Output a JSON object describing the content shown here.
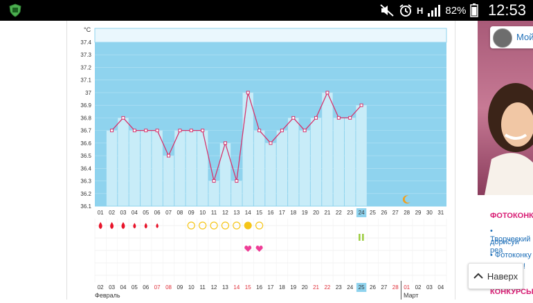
{
  "status_bar": {
    "battery": "82%",
    "time": "12:53",
    "network": "H",
    "icons": [
      "app-shield-icon",
      "mute-icon",
      "alarm-icon",
      "network-h-icon",
      "signal-icon",
      "battery-icon"
    ]
  },
  "chart": {
    "unit": "°C",
    "y_ticks": [
      "37.4",
      "37.3",
      "37.2",
      "37.1",
      "37",
      "36.9",
      "36.8",
      "36.7",
      "36.6",
      "36.5",
      "36.4",
      "36.3",
      "36.2",
      "36.1"
    ],
    "day_labels": [
      "01",
      "02",
      "03",
      "04",
      "05",
      "06",
      "07",
      "08",
      "09",
      "10",
      "11",
      "12",
      "13",
      "14",
      "15",
      "16",
      "17",
      "18",
      "19",
      "20",
      "21",
      "22",
      "23",
      "24",
      "25",
      "26",
      "27",
      "28",
      "29",
      "30",
      "31"
    ],
    "highlight_day": "24",
    "date_labels": [
      "02",
      "03",
      "04",
      "05",
      "06",
      "07",
      "08",
      "09",
      "10",
      "11",
      "12",
      "13",
      "14",
      "15",
      "16",
      "17",
      "18",
      "19",
      "20",
      "21",
      "22",
      "23",
      "24",
      "25",
      "26",
      "27",
      "28",
      "01",
      "02",
      "03",
      "04"
    ],
    "date_red": [
      "07",
      "08",
      "14",
      "15",
      "21",
      "22",
      "28",
      "01"
    ],
    "highlight_date": "25",
    "month_left": "Февраль",
    "month_right": "Март",
    "colors": {
      "bar": "#c8ecf8",
      "bg_band": "#8fd3ee",
      "line": "#d6336c",
      "drop": "#e8142a",
      "sun": "#f5c518",
      "heart": "#ee3d96",
      "moon": "#f0a020",
      "pill": "#9bcc3b",
      "highlight": "#8fd3ee"
    }
  },
  "chart_data": {
    "type": "line",
    "x": [
      "01",
      "02",
      "03",
      "04",
      "05",
      "06",
      "07",
      "08",
      "09",
      "10",
      "11",
      "12",
      "13",
      "14",
      "15",
      "16",
      "17",
      "18",
      "19",
      "20",
      "21",
      "22",
      "23",
      "24"
    ],
    "series": [
      {
        "values": [
          null,
          36.7,
          36.8,
          36.7,
          36.7,
          36.7,
          36.5,
          36.7,
          36.7,
          36.7,
          36.3,
          36.6,
          36.3,
          37.0,
          36.7,
          36.6,
          36.7,
          36.8,
          36.7,
          36.8,
          37.0,
          36.8,
          36.8,
          36.9
        ]
      }
    ],
    "ylim": [
      36.1,
      37.4
    ],
    "ylabel": "°C",
    "markers": {
      "drop_days": [
        "01",
        "02",
        "03",
        "04",
        "05",
        "06"
      ],
      "drop_sizes": [
        1,
        1,
        1,
        0.8,
        0.8,
        0.7
      ],
      "sun_outline_days": [
        "09",
        "10",
        "11",
        "12",
        "13",
        "15"
      ],
      "sun_filled_days": [
        "14"
      ],
      "heart_days": [
        "14",
        "15"
      ],
      "pill_days": [
        "24"
      ],
      "moon_days": [
        "28"
      ]
    }
  },
  "sidebar": {
    "profile_label": "Мой",
    "section1_title": "ФОТОКОНКУ",
    "link1a": "• Творческий",
    "link1b": "дорисуй реа",
    "link2a": "• Фотоконку",
    "link2b": "!",
    "section2_title": "КОНКУРСЫ"
  },
  "back_button": {
    "label": "Наверх",
    "icon": "chevron-up-icon"
  }
}
